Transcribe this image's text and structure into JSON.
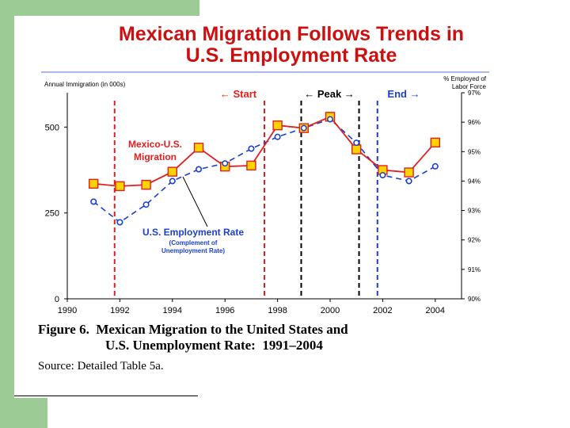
{
  "slide": {
    "title_line1": "Mexican Migration Follows Trends in",
    "title_line2": "U.S. Employment Rate",
    "caption_line1": "Figure 6.  Mexican Migration to the United States and",
    "caption_line2": "U.S. Unemployment Rate:  1991–2004",
    "source": "Source:  Detailed Table 5a.",
    "accent_color": "#cc1010",
    "frame_color": "#9dcb95"
  },
  "chart_data": {
    "type": "line",
    "left_axis_label": "Annual Immigration (in 000s)",
    "right_axis_label_line1": "% Employed of",
    "right_axis_label_line2": "Labor Force",
    "x_ticks": [
      "1990",
      "1992",
      "1994",
      "1996",
      "1998",
      "2000",
      "2002",
      "2004"
    ],
    "x_tick_values": [
      1990,
      1992,
      1994,
      1996,
      1998,
      2000,
      2002,
      2004
    ],
    "y_left_ticks": [
      "0",
      "250",
      "500"
    ],
    "y_left_tick_values": [
      0,
      250,
      500
    ],
    "y_right_ticks": [
      "90%",
      "91%",
      "92%",
      "93%",
      "94%",
      "95%",
      "96%",
      "97%"
    ],
    "y_right_tick_values": [
      90,
      91,
      92,
      93,
      94,
      95,
      96,
      97
    ],
    "xlim": [
      1990,
      2005
    ],
    "ylim_left": [
      0,
      600
    ],
    "ylim_right": [
      90,
      97
    ],
    "series": [
      {
        "name": "Mexico-U.S. Migration",
        "label_line1": "Mexico-U.S.",
        "label_line2": "Migration",
        "axis": "left",
        "color": "#e02020",
        "marker": "square",
        "x": [
          1991,
          1992,
          1993,
          1994,
          1995,
          1996,
          1997,
          1998,
          1999,
          2000,
          2001,
          2002,
          2003,
          2004
        ],
        "values": [
          335,
          328,
          332,
          370,
          440,
          385,
          388,
          505,
          497,
          530,
          435,
          375,
          368,
          455
        ]
      },
      {
        "name": "U.S. Employment Rate",
        "label_line1": "U.S. Employment Rate",
        "note_line1": "(Complement of",
        "note_line2": "Unemployment Rate)",
        "axis": "right",
        "color": "#1a3fd0",
        "marker": "circle",
        "x": [
          1991,
          1992,
          1993,
          1994,
          1995,
          1996,
          1997,
          1998,
          1999,
          2000,
          2001,
          2002,
          2003,
          2004
        ],
        "values": [
          93.3,
          92.6,
          93.2,
          94.0,
          94.4,
          94.6,
          95.1,
          95.5,
          95.8,
          96.1,
          95.3,
          94.2,
          94.0,
          94.5
        ]
      }
    ],
    "annotations": [
      {
        "name": "start",
        "label": "← Start",
        "x": 1997.5,
        "color": "#e02020"
      },
      {
        "name": "peak",
        "label": "← Peak →",
        "x_start": 1998.9,
        "x_end": 2001.1,
        "color": "#000000"
      },
      {
        "name": "end",
        "label": "End →",
        "x": 2001.8,
        "color": "#1a3fd0"
      }
    ],
    "reference_lines": [
      {
        "x": 1991.8,
        "color": "#e02020"
      },
      {
        "x": 1997.5,
        "color": "#e02020"
      },
      {
        "x": 1998.9,
        "color": "#000000"
      },
      {
        "x": 2001.1,
        "color": "#000000"
      },
      {
        "x": 2001.8,
        "color": "#1a3fd0"
      }
    ]
  }
}
